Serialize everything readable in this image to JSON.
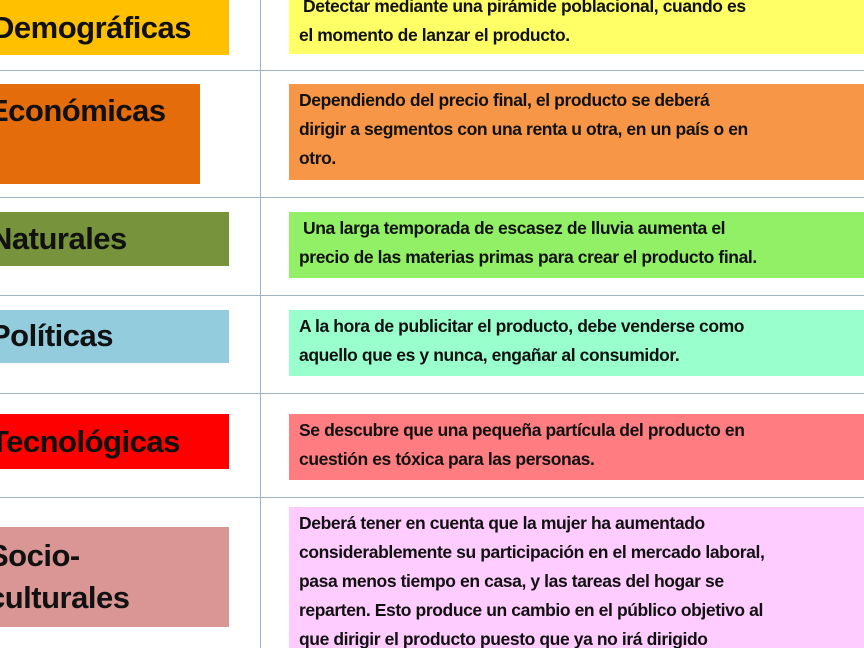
{
  "rows": [
    {
      "label": "Demográficas",
      "label_color": "#FFC000",
      "description_lines": [
        "Detectar mediante una pirámide poblacional, cuando es",
        "el momento de lanzar el producto."
      ],
      "description_color": "#FFFF66"
    },
    {
      "label": "Económicas",
      "label_color": "#E46C0A",
      "description_lines": [
        "Dependiendo del precio final, el producto se deberá",
        "dirigir a segmentos con una renta u otra, en un país o en",
        "otro."
      ],
      "description_color": "#F79646"
    },
    {
      "label": "Naturales",
      "label_color": "#77933C",
      "description_lines": [
        " Una larga temporada de escasez de lluvia aumenta el",
        "precio de las materias primas para crear el producto final."
      ],
      "description_color": "#92F066"
    },
    {
      "label": "Políticas",
      "label_color": "#93CDDD",
      "description_lines": [
        "A la hora de publicitar el producto, debe venderse como",
        "aquello que es y nunca, engañar al consumidor."
      ],
      "description_color": "#99FFCC"
    },
    {
      "label": "Tecnológicas",
      "label_color": "#FF0000",
      "description_lines": [
        "Se descubre que una pequeña partícula del producto en",
        "cuestión es tóxica para las personas."
      ],
      "description_color": "#FF7C80"
    },
    {
      "label_lines": [
        "Socio-",
        "culturales"
      ],
      "label_color": "#D99694",
      "description_lines": [
        "Deberá tener en cuenta que la mujer ha aumentado",
        "considerablemente su participación en el mercado laboral,",
        "pasa menos tiempo en casa, y las tareas del hogar se",
        "reparten. Esto produce un cambio en el público objetivo al",
        "que dirigir el producto puesto que ya no irá dirigido"
      ],
      "description_color": "#FFCCFF"
    }
  ]
}
